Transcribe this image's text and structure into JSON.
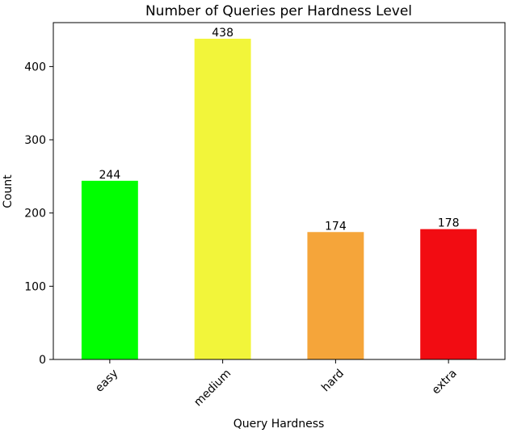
{
  "chart_data": {
    "type": "bar",
    "title": "Number of Queries per Hardness Level",
    "xlabel": "Query Hardness",
    "ylabel": "Count",
    "categories": [
      "easy",
      "medium",
      "hard",
      "extra"
    ],
    "values": [
      244,
      438,
      174,
      178
    ],
    "data_labels": [
      "244",
      "438",
      "174",
      "178"
    ],
    "colors": [
      "#00ff00",
      "#f2f53a",
      "#f5a53a",
      "#f20c12"
    ],
    "ylim": [
      0,
      460
    ],
    "yticks": [
      0,
      100,
      200,
      300,
      400
    ],
    "ytick_labels": [
      "0",
      "100",
      "200",
      "300",
      "400"
    ],
    "grid": false,
    "legend": "none",
    "xtick_rotation_deg": 45
  }
}
